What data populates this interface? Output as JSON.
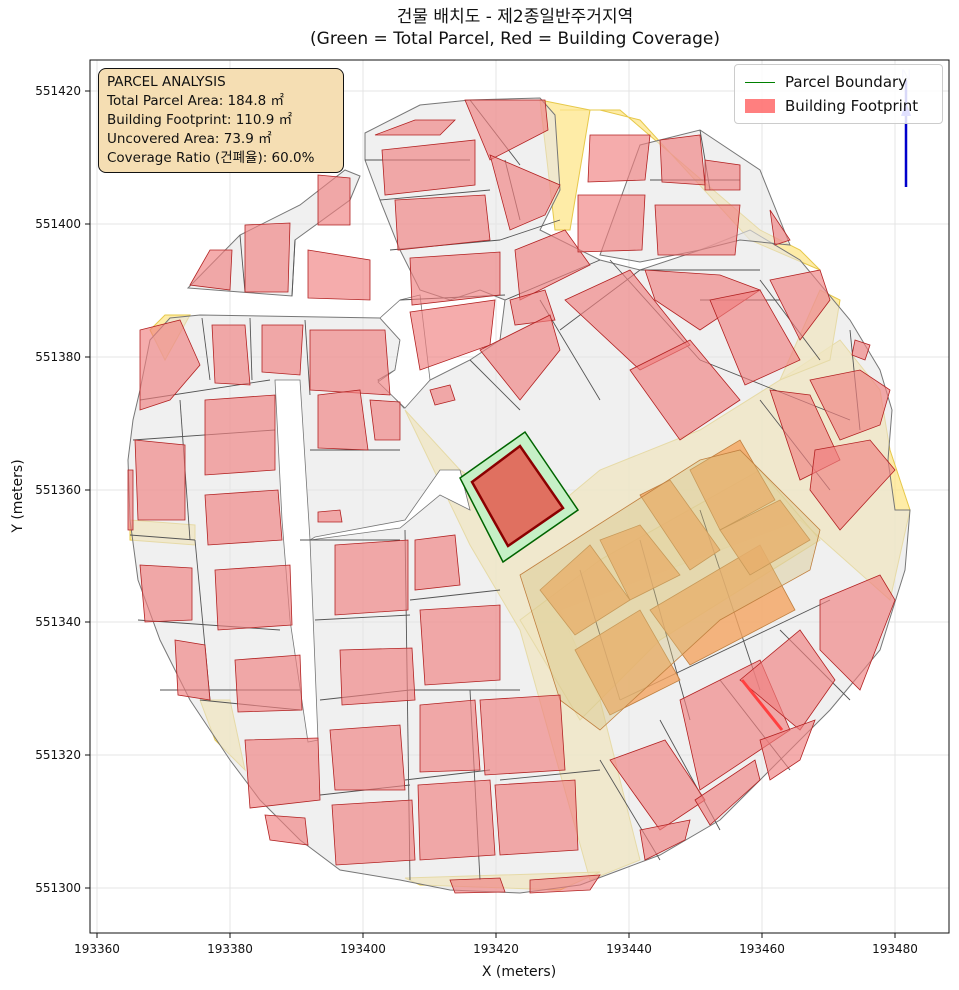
{
  "title": {
    "line1": "건물 배치도 - 제2종일반주거지역",
    "line2": "(Green = Total Parcel, Red = Building Coverage)"
  },
  "axes": {
    "xlabel": "X (meters)",
    "ylabel": "Y (meters)",
    "xticks": [
      "193360",
      "193380",
      "193400",
      "193420",
      "193440",
      "193460",
      "193480"
    ],
    "yticks": [
      "551300",
      "551320",
      "551340",
      "551360",
      "551380",
      "551400",
      "551420"
    ]
  },
  "analysis": {
    "heading": "PARCEL ANALYSIS",
    "total": "Total Parcel Area: 184.8 ㎡",
    "footprint": "Building Footprint: 110.9 ㎡",
    "uncovered": "Uncovered Area: 73.9 ㎡",
    "ratio": "Coverage Ratio (건폐율): 60.0%"
  },
  "legend": {
    "parcel": "Parcel Boundary",
    "building": "Building Footprint"
  },
  "colors": {
    "parcel_fill": "#c6f0c6",
    "parcel_edge": "#006400",
    "building_fill": "#f08080",
    "building_edge": "#8b0000",
    "road": "#fde68a",
    "lot": "#e6e6e6",
    "north_arrow": "#0000cc"
  },
  "north_arrow": "arrow-up-icon"
}
